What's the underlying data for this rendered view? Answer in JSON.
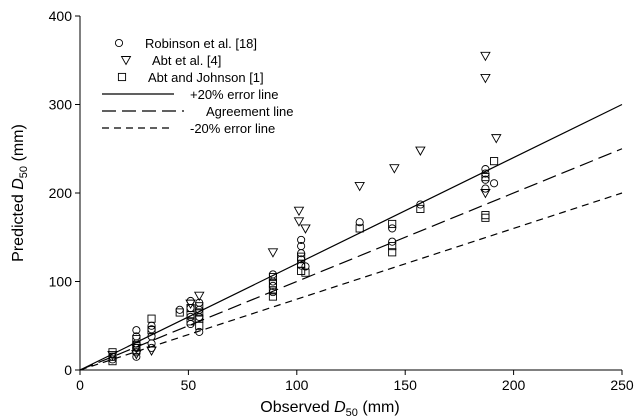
{
  "chart_data": {
    "type": "scatter",
    "title": "",
    "xlabel": {
      "prefix": "Observed ",
      "var": "D",
      "sub": "50",
      "suffix": " (mm)"
    },
    "ylabel": {
      "prefix": "Predicted ",
      "var": "D",
      "sub": "50",
      "suffix": " (mm)"
    },
    "xlim": [
      0,
      250
    ],
    "ylim": [
      0,
      400
    ],
    "xticks": [
      0,
      50,
      100,
      150,
      200,
      250
    ],
    "yticks": [
      0,
      100,
      200,
      300,
      400
    ],
    "grid": false,
    "legend_position": "top-left",
    "series": [
      {
        "name": "Robinson et al. [18]",
        "marker": "circle",
        "points": [
          [
            15,
            12
          ],
          [
            15,
            15
          ],
          [
            26,
            15
          ],
          [
            26,
            20
          ],
          [
            26,
            25
          ],
          [
            26,
            30
          ],
          [
            26,
            38
          ],
          [
            26,
            45
          ],
          [
            33,
            25
          ],
          [
            33,
            30
          ],
          [
            33,
            38
          ],
          [
            33,
            46
          ],
          [
            33,
            50
          ],
          [
            46,
            68
          ],
          [
            51,
            52
          ],
          [
            51,
            60
          ],
          [
            51,
            70
          ],
          [
            51,
            78
          ],
          [
            55,
            43
          ],
          [
            55,
            60
          ],
          [
            55,
            68
          ],
          [
            55,
            76
          ],
          [
            89,
            88
          ],
          [
            89,
            95
          ],
          [
            89,
            100
          ],
          [
            89,
            108
          ],
          [
            102,
            118
          ],
          [
            102,
            125
          ],
          [
            102,
            132
          ],
          [
            102,
            140
          ],
          [
            102,
            147
          ],
          [
            104,
            117
          ],
          [
            129,
            167
          ],
          [
            144,
            145
          ],
          [
            144,
            160
          ],
          [
            157,
            187
          ],
          [
            187,
            205
          ],
          [
            187,
            215
          ],
          [
            187,
            222
          ],
          [
            187,
            227
          ],
          [
            191,
            211
          ]
        ]
      },
      {
        "name": "Abt et al. [4]",
        "marker": "triangle-down",
        "points": [
          [
            15,
            17
          ],
          [
            26,
            18
          ],
          [
            26,
            25
          ],
          [
            33,
            22
          ],
          [
            51,
            75
          ],
          [
            55,
            84
          ],
          [
            89,
            133
          ],
          [
            101,
            180
          ],
          [
            101,
            168
          ],
          [
            104,
            160
          ],
          [
            129,
            208
          ],
          [
            145,
            228
          ],
          [
            157,
            248
          ],
          [
            187,
            355
          ],
          [
            187,
            330
          ],
          [
            187,
            200
          ],
          [
            192,
            262
          ]
        ]
      },
      {
        "name": "Abt and Johnson [1]",
        "marker": "square",
        "points": [
          [
            15,
            10
          ],
          [
            15,
            15
          ],
          [
            15,
            20
          ],
          [
            26,
            22
          ],
          [
            26,
            28
          ],
          [
            26,
            35
          ],
          [
            33,
            45
          ],
          [
            33,
            58
          ],
          [
            46,
            65
          ],
          [
            51,
            55
          ],
          [
            51,
            62
          ],
          [
            51,
            70
          ],
          [
            55,
            50
          ],
          [
            55,
            58
          ],
          [
            55,
            65
          ],
          [
            55,
            72
          ],
          [
            89,
            83
          ],
          [
            89,
            90
          ],
          [
            89,
            98
          ],
          [
            89,
            105
          ],
          [
            102,
            112
          ],
          [
            102,
            120
          ],
          [
            102,
            128
          ],
          [
            104,
            110
          ],
          [
            129,
            160
          ],
          [
            144,
            133
          ],
          [
            144,
            140
          ],
          [
            144,
            165
          ],
          [
            157,
            182
          ],
          [
            187,
            172
          ],
          [
            187,
            175
          ],
          [
            187,
            218
          ],
          [
            191,
            236
          ]
        ]
      }
    ],
    "lines": [
      {
        "name": "+20% error line",
        "slope": 1.2,
        "dash": ""
      },
      {
        "name": "Agreement line",
        "slope": 1.0,
        "dash": "14,6"
      },
      {
        "name": "-20% error line",
        "slope": 0.8,
        "dash": "7,5"
      }
    ]
  }
}
